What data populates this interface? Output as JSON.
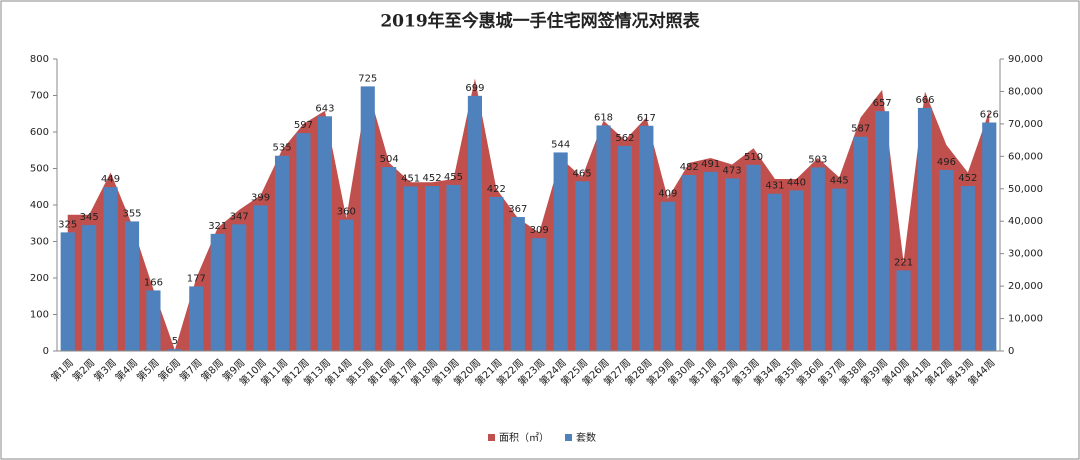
{
  "chart_data": {
    "type": "bar",
    "title": "2019年至今惠城一手住宅网签情况对照表",
    "categories": [
      "第1周",
      "第2周",
      "第3周",
      "第4周",
      "第5周",
      "第6周",
      "第7周",
      "第8周",
      "第9周",
      "第10周",
      "第11周",
      "第12周",
      "第13周",
      "第14周",
      "第15周",
      "第16周",
      "第17周",
      "第18周",
      "第19周",
      "第20周",
      "第21周",
      "第22周",
      "第23周",
      "第24周",
      "第25周",
      "第26周",
      "第27周",
      "第28周",
      "第29周",
      "第30周",
      "第31周",
      "第32周",
      "第33周",
      "第34周",
      "第35周",
      "第36周",
      "第37周",
      "第38周",
      "第39周",
      "第40周",
      "第41周",
      "第42周",
      "第43周",
      "第44周"
    ],
    "series": [
      {
        "name": "面积（㎡）",
        "type": "area",
        "axis": "y2",
        "color": "#c0504d",
        "values": [
          42000,
          42000,
          55000,
          39000,
          19000,
          300,
          22500,
          38000,
          43500,
          48000,
          62000,
          70000,
          74000,
          41000,
          81000,
          58000,
          52000,
          52000,
          53000,
          84000,
          50000,
          41000,
          36500,
          59500,
          53500,
          71000,
          65000,
          72000,
          47000,
          58000,
          59500,
          57500,
          62500,
          53000,
          53000,
          59500,
          53500,
          72000,
          80500,
          27500,
          80000,
          63500,
          55000,
          74000
        ]
      },
      {
        "name": "套数",
        "type": "bar",
        "color": "#4f81bd",
        "values": [
          325,
          345,
          449,
          355,
          166,
          5,
          177,
          321,
          347,
          399,
          535,
          597,
          643,
          360,
          725,
          504,
          451,
          452,
          455,
          699,
          422,
          367,
          309,
          544,
          465,
          618,
          562,
          617,
          409,
          482,
          491,
          473,
          510,
          431,
          440,
          503,
          445,
          587,
          657,
          221,
          666,
          496,
          452,
          626
        ]
      }
    ],
    "ylim": [
      0,
      800
    ],
    "yticks": [
      0,
      100,
      200,
      300,
      400,
      500,
      600,
      700,
      800
    ],
    "y2lim": [
      0,
      90000
    ],
    "y2ticks": [
      0,
      {
        "value": 10000,
        "label": "10,000"
      },
      {
        "value": 20000,
        "label": "20,000"
      },
      {
        "value": 30000,
        "label": "30,000"
      },
      {
        "value": 40000,
        "label": "40,000"
      },
      {
        "value": 50000,
        "label": "50,000"
      },
      {
        "value": 60000,
        "label": "60,000"
      },
      {
        "value": 70000,
        "label": "70,000"
      },
      {
        "value": 80000,
        "label": "80,000"
      },
      {
        "value": 90000,
        "label": "90,000"
      }
    ],
    "legend": "bottom"
  }
}
